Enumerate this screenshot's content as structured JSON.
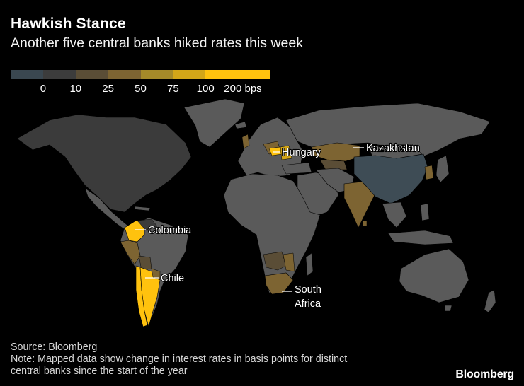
{
  "header": {
    "title": "Hawkish Stance",
    "subtitle": "Another five central banks hiked rates this week"
  },
  "legend": {
    "labels": [
      "0",
      "10",
      "25",
      "50",
      "75",
      "100",
      "200 bps"
    ],
    "colors": [
      "#3a4750",
      "#3c3c3c",
      "#5a4d36",
      "#7d6432",
      "#a58a29",
      "#d3a618",
      "#ffc20e",
      "#ffc20e"
    ]
  },
  "map": {
    "colors": {
      "land_default": "#5a5a5a",
      "north_america": "#3b3b3b",
      "china": "#3e4c55",
      "bucket_25": "#5a4d36",
      "bucket_50": "#7d6432",
      "bucket_100": "#d3a618",
      "bucket_200": "#ffc20e"
    },
    "callouts": [
      {
        "label": "Colombia"
      },
      {
        "label": "Chile"
      },
      {
        "label": "Hungary"
      },
      {
        "label": "Kazakhstan"
      },
      {
        "label_line1": "South",
        "label_line2": "Africa"
      }
    ]
  },
  "footer": {
    "source": "Source: Bloomberg",
    "note_line1": "Note: Mapped data show change in interest rates in basis points for distinct",
    "note_line2": "central banks since the start of the year",
    "brand": "Bloomberg"
  }
}
